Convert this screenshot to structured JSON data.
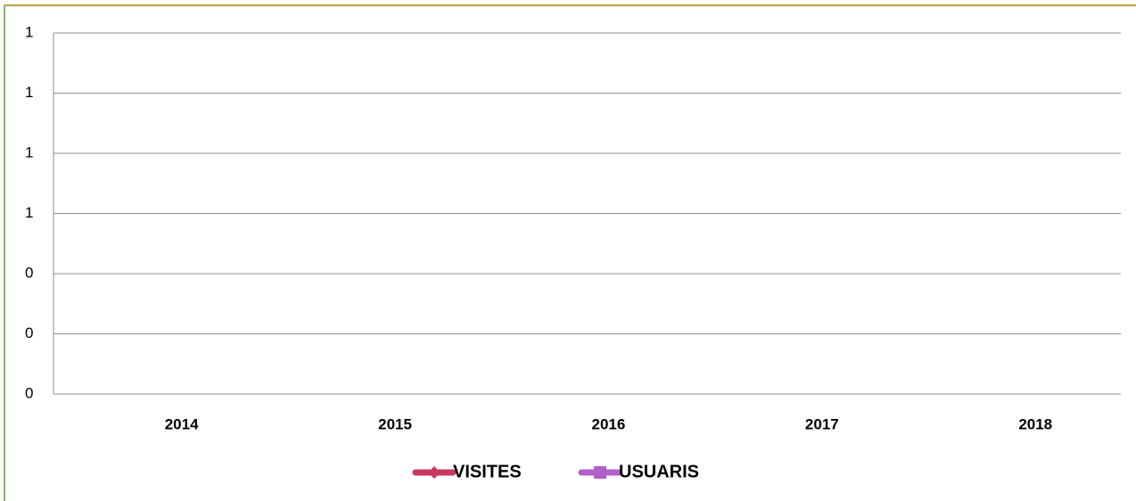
{
  "chart_data": {
    "type": "line",
    "categories": [
      "2014",
      "2015",
      "2016",
      "2017",
      "2018"
    ],
    "series": [
      {
        "name": "VISITES",
        "color": "#c8375f",
        "marker": "diamond",
        "values": [
          null,
          null,
          null,
          null,
          null
        ]
      },
      {
        "name": "USUARIS",
        "color": "#b15fcb",
        "marker": "square",
        "values": [
          null,
          null,
          null,
          null,
          null
        ]
      }
    ],
    "ylim": [
      0,
      1.2
    ],
    "yticks": [
      {
        "value": 0,
        "label": "0"
      },
      {
        "value": 0.2,
        "label": "0"
      },
      {
        "value": 0.4,
        "label": "0"
      },
      {
        "value": 0.6,
        "label": "1"
      },
      {
        "value": 0.8,
        "label": "1"
      },
      {
        "value": 1.0,
        "label": "1"
      },
      {
        "value": 1.2,
        "label": "1"
      }
    ],
    "grid": true,
    "legend": "bottom"
  }
}
